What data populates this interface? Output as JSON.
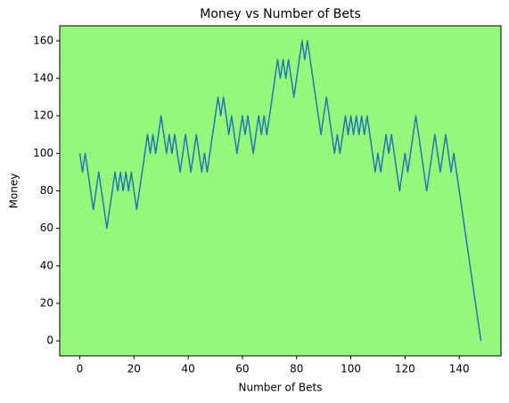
{
  "chart_data": {
    "type": "line",
    "title": "Money vs Number of Bets",
    "xlabel": "Number of Bets",
    "ylabel": "Money",
    "x": [
      0,
      1,
      2,
      3,
      4,
      5,
      6,
      7,
      8,
      9,
      10,
      11,
      12,
      13,
      14,
      15,
      16,
      17,
      18,
      19,
      20,
      21,
      22,
      23,
      24,
      25,
      26,
      27,
      28,
      29,
      30,
      31,
      32,
      33,
      34,
      35,
      36,
      37,
      38,
      39,
      40,
      41,
      42,
      43,
      44,
      45,
      46,
      47,
      48,
      49,
      50,
      51,
      52,
      53,
      54,
      55,
      56,
      57,
      58,
      59,
      60,
      61,
      62,
      63,
      64,
      65,
      66,
      67,
      68,
      69,
      70,
      71,
      72,
      73,
      74,
      75,
      76,
      77,
      78,
      79,
      80,
      81,
      82,
      83,
      84,
      85,
      86,
      87,
      88,
      89,
      90,
      91,
      92,
      93,
      94,
      95,
      96,
      97,
      98,
      99,
      100,
      101,
      102,
      103,
      104,
      105,
      106,
      107,
      108,
      109,
      110,
      111,
      112,
      113,
      114,
      115,
      116,
      117,
      118,
      119,
      120,
      121,
      122,
      123,
      124,
      125,
      126,
      127,
      128,
      129,
      130,
      131,
      132,
      133,
      134,
      135,
      136,
      137,
      138,
      139,
      140,
      141,
      142,
      143,
      144,
      145,
      146,
      147,
      148
    ],
    "series": [
      {
        "color": "#1f77b4",
        "values": [
          100,
          90,
          100,
          90,
          80,
          70,
          80,
          90,
          80,
          70,
          60,
          70,
          80,
          90,
          80,
          90,
          80,
          90,
          80,
          90,
          80,
          70,
          80,
          90,
          100,
          110,
          100,
          110,
          100,
          110,
          120,
          110,
          100,
          110,
          100,
          110,
          100,
          90,
          100,
          110,
          100,
          90,
          100,
          110,
          100,
          90,
          100,
          90,
          100,
          110,
          120,
          130,
          120,
          130,
          120,
          110,
          120,
          110,
          100,
          110,
          120,
          110,
          120,
          110,
          100,
          110,
          120,
          110,
          120,
          110,
          120,
          130,
          140,
          150,
          140,
          150,
          140,
          150,
          140,
          130,
          140,
          150,
          160,
          150,
          160,
          150,
          140,
          130,
          120,
          110,
          120,
          130,
          120,
          110,
          100,
          110,
          100,
          110,
          120,
          110,
          120,
          110,
          120,
          110,
          120,
          110,
          120,
          110,
          100,
          90,
          100,
          90,
          100,
          110,
          100,
          110,
          100,
          90,
          80,
          90,
          100,
          90,
          100,
          110,
          120,
          110,
          100,
          90,
          80,
          90,
          100,
          110,
          100,
          90,
          100,
          110,
          100,
          90,
          100,
          90,
          80,
          70,
          60,
          50,
          40,
          30,
          20,
          10,
          0
        ]
      }
    ],
    "xlim": [
      -7.4,
      155.4
    ],
    "ylim": [
      -8,
      168
    ],
    "xticks": [
      0,
      20,
      40,
      60,
      80,
      100,
      120,
      140
    ],
    "yticks": [
      0,
      20,
      40,
      60,
      80,
      100,
      120,
      140,
      160
    ],
    "background": "#96f87a"
  }
}
